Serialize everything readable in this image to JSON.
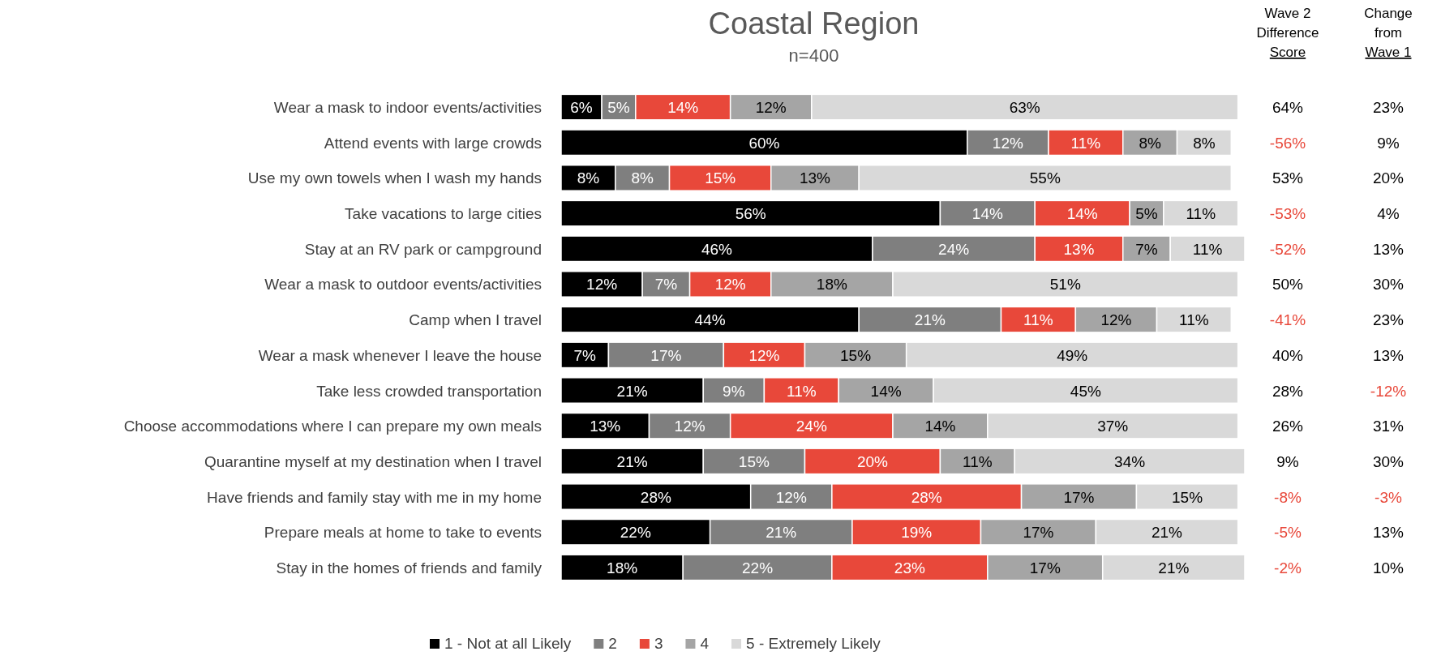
{
  "chart_data": {
    "type": "bar",
    "orientation": "horizontal",
    "stacked": true,
    "title": "Coastal Region",
    "subtitle": "n=400",
    "categories": [
      "Wear a mask to indoor events/activities",
      "Attend events with large crowds",
      "Use my own towels when I wash my hands",
      "Take vacations to large cities",
      "Stay at an RV park or campground",
      "Wear a mask to outdoor events/activities",
      "Camp when I travel",
      "Wear a mask whenever I leave the house",
      "Take less crowded transportation",
      "Choose accommodations where I can prepare my own meals",
      "Quarantine myself at my destination when I travel",
      "Have friends and family stay with me in my home",
      "Prepare meals at home to take to events",
      "Stay in the homes of friends and family"
    ],
    "series": [
      {
        "name": "1 - Not at all Likely",
        "color": "#000000",
        "values": [
          6,
          60,
          8,
          56,
          46,
          12,
          44,
          7,
          21,
          13,
          21,
          28,
          22,
          18
        ],
        "value_labels": [
          "6%",
          "60%",
          "8%",
          "56%",
          "46%",
          "12%",
          "44%",
          "7%",
          "21%",
          "13%",
          "21%",
          "28%",
          "22%",
          "18%"
        ]
      },
      {
        "name": "2",
        "color": "#7f7f7f",
        "values": [
          5,
          12,
          8,
          14,
          24,
          7,
          21,
          17,
          9,
          12,
          15,
          12,
          21,
          22
        ],
        "value_labels": [
          "5%",
          "12%",
          "8%",
          "14%",
          "24%",
          "7%",
          "21%",
          "17%",
          "9%",
          "12%",
          "15%",
          "12%",
          "21%",
          "22%"
        ]
      },
      {
        "name": "3",
        "color": "#e8483a",
        "values": [
          14,
          11,
          15,
          14,
          13,
          12,
          11,
          12,
          11,
          24,
          20,
          28,
          19,
          23
        ],
        "value_labels": [
          "14%",
          "11%",
          "15%",
          "14%",
          "13%",
          "12%",
          "11%",
          "12%",
          "11%",
          "24%",
          "20%",
          "28%",
          "19%",
          "23%"
        ]
      },
      {
        "name": "4",
        "color": "#a5a5a5",
        "values": [
          12,
          8,
          13,
          5,
          7,
          18,
          12,
          15,
          14,
          14,
          11,
          17,
          17,
          17
        ],
        "value_labels": [
          "12%",
          "8%",
          "13%",
          "5%",
          "7%",
          "18%",
          "12%",
          "15%",
          "14%",
          "14%",
          "11%",
          "17%",
          "17%",
          "17%"
        ]
      },
      {
        "name": "5 - Extremely Likely",
        "color": "#d9d9d9",
        "values": [
          63,
          8,
          55,
          11,
          11,
          51,
          11,
          49,
          45,
          37,
          34,
          15,
          21,
          21
        ],
        "value_labels": [
          "63%",
          "8%",
          "55%",
          "11%",
          "11%",
          "51%",
          "11%",
          "49%",
          "45%",
          "37%",
          "34%",
          "15%",
          "21%",
          "21%"
        ]
      }
    ],
    "xlim": [
      0,
      101
    ],
    "tick_labels": "y",
    "legend": "bottom",
    "grid": false,
    "annotations": [
      "Wave 2\nDifference\nScore",
      "64%",
      "-56%",
      "53%",
      "-53%",
      "-52%",
      "50%",
      "-41%",
      "40%",
      "28%",
      "26%",
      "9%",
      "-8%",
      "-5%",
      "-2%",
      "Change\nfrom\nWave 1",
      "23%",
      "9%",
      "20%",
      "4%",
      "13%",
      "30%",
      "23%",
      "13%",
      "-12%",
      "31%",
      "30%",
      "-3%",
      "13%",
      "10%"
    ]
  }
}
